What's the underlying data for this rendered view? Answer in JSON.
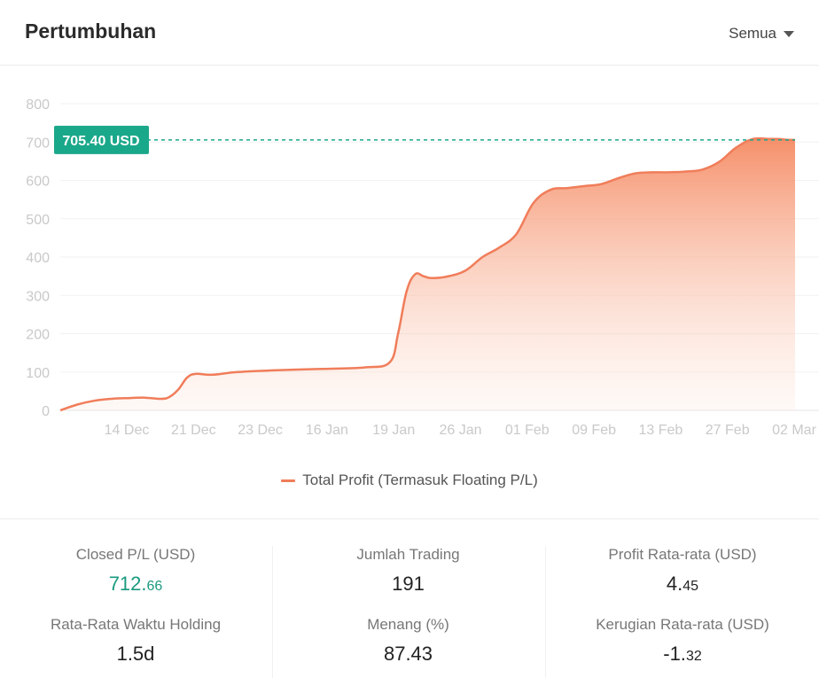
{
  "header": {
    "title": "Pertumbuhan",
    "dropdown_label": "Semua"
  },
  "chart_data": {
    "type": "area",
    "x": [
      "2023-12-07",
      "2023-12-09",
      "2023-12-11",
      "2023-12-13",
      "2023-12-15",
      "2023-12-17",
      "2023-12-19",
      "2023-12-20",
      "2023-12-21",
      "2023-12-22",
      "2023-12-23",
      "2023-12-25",
      "2023-12-28",
      "2024-01-02",
      "2024-01-07",
      "2024-01-12",
      "2024-01-15",
      "2024-01-16",
      "2024-01-17",
      "2024-01-18",
      "2024-01-19",
      "2024-01-20",
      "2024-01-22",
      "2024-01-24",
      "2024-01-26",
      "2024-01-28",
      "2024-01-30",
      "2024-02-01",
      "2024-02-03",
      "2024-02-05",
      "2024-02-07",
      "2024-02-09",
      "2024-02-11",
      "2024-02-13",
      "2024-02-15",
      "2024-02-17",
      "2024-02-19",
      "2024-02-21",
      "2024-02-23",
      "2024-02-25",
      "2024-02-27",
      "2024-02-29",
      "2024-03-01",
      "2024-03-02",
      "2024-03-03"
    ],
    "y": [
      0,
      15,
      25,
      30,
      32,
      33,
      30,
      36,
      55,
      85,
      95,
      93,
      100,
      105,
      108,
      112,
      125,
      200,
      310,
      355,
      350,
      345,
      350,
      365,
      400,
      425,
      460,
      540,
      575,
      580,
      585,
      590,
      605,
      618,
      621,
      621,
      623,
      628,
      648,
      685,
      708,
      708,
      708,
      706,
      705.4
    ],
    "series": [
      {
        "name": "Total Profit (Termasuk Floating P/L)",
        "color": "#f07d5a"
      }
    ],
    "x_tick_labels": [
      "14 Dec",
      "21 Dec",
      "23 Dec",
      "16 Jan",
      "19 Jan",
      "26 Jan",
      "01 Feb",
      "09 Feb",
      "13 Feb",
      "27 Feb",
      "02 Mar"
    ],
    "y_tick_labels": [
      "0",
      "100",
      "200",
      "300",
      "400",
      "500",
      "600",
      "700",
      "800"
    ],
    "ylim": [
      0,
      800
    ],
    "grid": true,
    "legend_position": "bottom",
    "annotation": {
      "value": 705.4,
      "label": "705.40 USD",
      "color": "#1aa88a"
    }
  },
  "stats": {
    "closed_pl": {
      "label": "Closed P/L (USD)",
      "int": "712.",
      "dec": "66"
    },
    "jumlah_trading": {
      "label": "Jumlah Trading",
      "value": "191"
    },
    "profit_rata": {
      "label": "Profit Rata-rata (USD)",
      "int": "4.",
      "dec": "45"
    },
    "waktu_holding": {
      "label": "Rata-Rata Waktu Holding",
      "value": "1.5d"
    },
    "menang": {
      "label": "Menang (%)",
      "value": "87.43"
    },
    "kerugian_rata": {
      "label": "Kerugian Rata-rata (USD)",
      "int": "-1.",
      "dec": "32"
    }
  }
}
